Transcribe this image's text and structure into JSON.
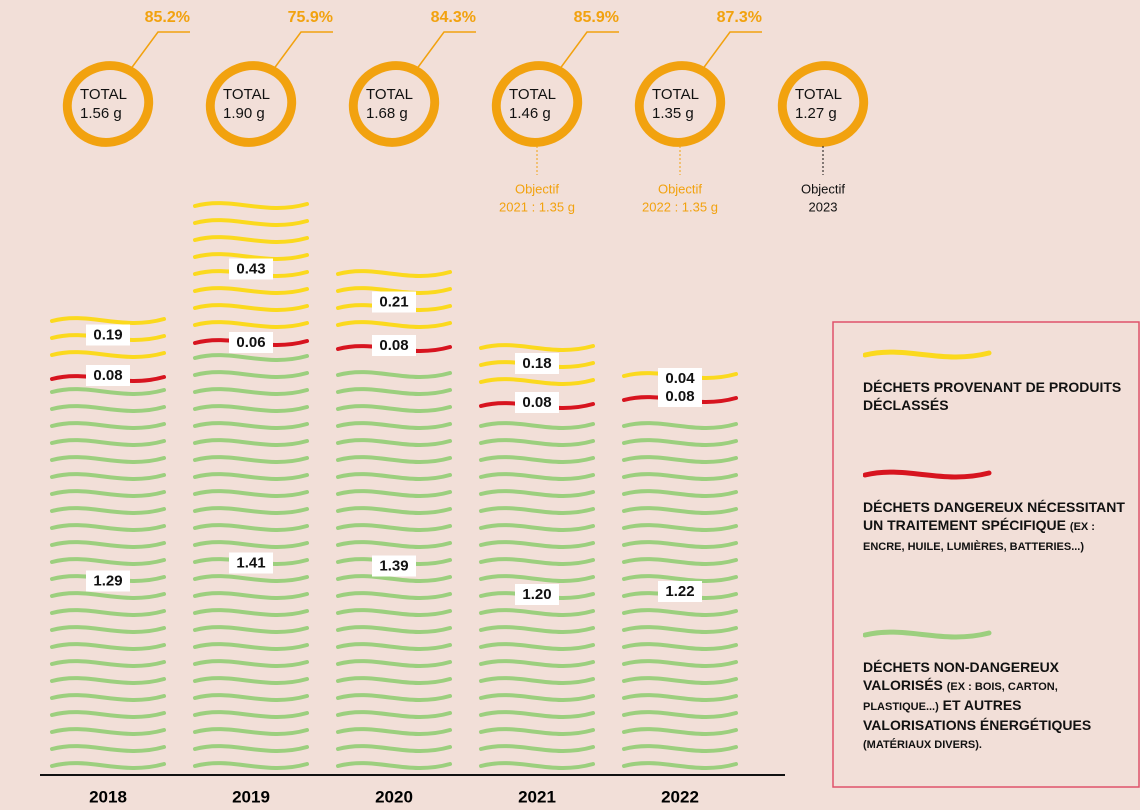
{
  "chart_data": {
    "type": "bar",
    "categories": [
      "2018",
      "2019",
      "2020",
      "2021",
      "2022"
    ],
    "series": [
      {
        "name_parts": [
          "DÉCHETS NON-DANGEREUX VALORISÉS",
          "(EX : BOIS, CARTON, PLASTIQUE...)",
          "ET AUTRES VALORISATIONS ÉNERGÉTIQUES",
          "(MATÉRIAUX DIVERS)."
        ],
        "color": "#9ccf7e",
        "values": [
          1.29,
          1.41,
          1.39,
          1.2,
          1.22
        ],
        "value_labels": [
          "1.29",
          "1.41",
          "1.39",
          "1.20",
          "1.22"
        ]
      },
      {
        "name_parts": [
          "DÉCHETS DANGEREUX NÉCESSITANT UN TRAITEMENT SPÉCIFIQUE",
          "(EX : ENCRE, HUILE, LUMIÈRES, BATTERIES...)"
        ],
        "color": "#d7141f",
        "values": [
          0.08,
          0.06,
          0.08,
          0.08,
          0.08
        ],
        "value_labels": [
          "0.08",
          "0.06",
          "0.08",
          "0.08",
          "0.08"
        ]
      },
      {
        "name_parts": [
          "DÉCHETS PROVENANT DE PRODUITS DÉCLASSÉS"
        ],
        "color": "#fbd91e",
        "values": [
          0.19,
          0.43,
          0.21,
          0.18,
          0.04
        ],
        "value_labels": [
          "0.19",
          "0.43",
          "0.21",
          "0.18",
          "0.04"
        ]
      }
    ],
    "totals": {
      "label": "TOTAL",
      "color": "#f2a20f",
      "values": [
        1.56,
        1.9,
        1.68,
        1.46,
        1.35,
        1.27
      ],
      "value_labels": [
        "1.56 g",
        "1.90 g",
        "1.68 g",
        "1.46 g",
        "1.35 g",
        "1.27 g"
      ]
    },
    "percentages": {
      "values": [
        85.2,
        75.9,
        84.3,
        85.9,
        87.3
      ],
      "value_labels": [
        "85.2%",
        "75.9%",
        "84.3%",
        "85.9%",
        "87.3%"
      ]
    },
    "objectives": [
      null,
      null,
      null,
      [
        "Objectif",
        "2021 : 1.35 g"
      ],
      [
        "Objectif",
        "2022 : 1.35 g"
      ],
      [
        "Objectif",
        "2023"
      ]
    ],
    "objective_colors": [
      null,
      null,
      null,
      "#f2a20f",
      "#f2a20f",
      "#111111"
    ]
  }
}
